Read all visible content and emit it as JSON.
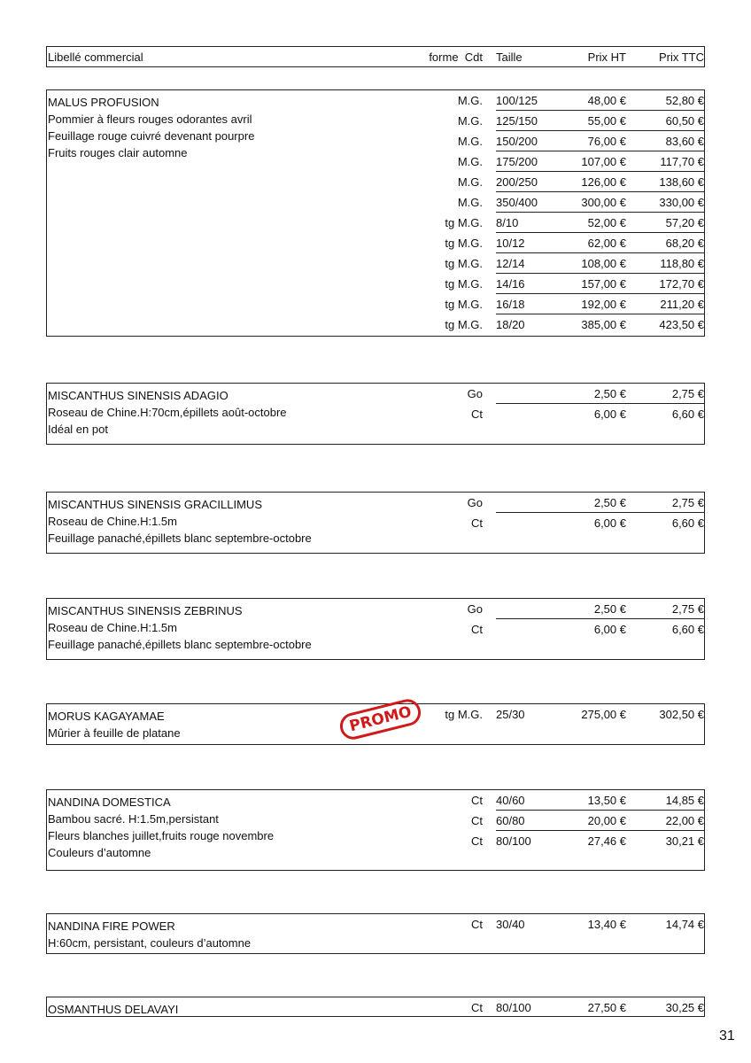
{
  "header": {
    "label": "Libellé commercial",
    "forme_cdt": "forme  Cdt",
    "taille": "Taille",
    "prix_ht": "Prix HT",
    "prix_ttc": "Prix TTC"
  },
  "products": [
    {
      "name": "MALUS PROFUSION",
      "description": [
        "Pommier à fleurs rouges odorantes avril",
        "Feuillage rouge cuivré devenant pourpre",
        "Fruits rouges clair automne"
      ],
      "rows": [
        [
          "M.G.",
          "100/125",
          "48,00 €",
          "52,80 €"
        ],
        [
          "M.G.",
          "125/150",
          "55,00 €",
          "60,50 €"
        ],
        [
          "M.G.",
          "150/200",
          "76,00 €",
          "83,60 €"
        ],
        [
          "M.G.",
          "175/200",
          "107,00 €",
          "117,70 €"
        ],
        [
          "M.G.",
          "200/250",
          "126,00 €",
          "138,60 €"
        ],
        [
          "M.G.",
          "350/400",
          "300,00 €",
          "330,00 €"
        ],
        [
          "tg M.G.",
          "8/10",
          "52,00 €",
          "57,20 €"
        ],
        [
          "tg M.G.",
          "10/12",
          "62,00 €",
          "68,20 €"
        ],
        [
          "tg M.G.",
          "12/14",
          "108,00 €",
          "118,80 €"
        ],
        [
          "tg M.G.",
          "14/16",
          "157,00 €",
          "172,70 €"
        ],
        [
          "tg M.G.",
          "16/18",
          "192,00 €",
          "211,20 €"
        ],
        [
          "tg M.G.",
          "18/20",
          "385,00 €",
          "423,50 €"
        ]
      ]
    },
    {
      "name": "MISCANTHUS SINENSIS ADAGIO",
      "description": [
        "Roseau de Chine.H:70cm,épillets août-octobre",
        "Idéal en pot"
      ],
      "rows": [
        [
          "Go",
          "",
          "2,50 €",
          "2,75 €"
        ],
        [
          "Ct",
          "",
          "6,00 €",
          "6,60 €"
        ]
      ]
    },
    {
      "name": "MISCANTHUS SINENSIS GRACILLIMUS",
      "description": [
        "Roseau de Chine.H:1.5m",
        "Feuillage panaché,épillets blanc septembre-octobre"
      ],
      "rows": [
        [
          "Go",
          "",
          "2,50 €",
          "2,75 €"
        ],
        [
          "Ct",
          "",
          "6,00 €",
          "6,60 €"
        ]
      ]
    },
    {
      "name": "MISCANTHUS SINENSIS ZEBRINUS",
      "description": [
        "Roseau de Chine.H:1.5m",
        "Feuillage panaché,épillets blanc septembre-octobre"
      ],
      "rows": [
        [
          "Go",
          "",
          "2,50 €",
          "2,75 €"
        ],
        [
          "Ct",
          "",
          "6,00 €",
          "6,60 €"
        ]
      ]
    },
    {
      "name": "MORUS KAGAYAMAE",
      "description": [
        "Mûrier à feuille de platane"
      ],
      "badge": "PROMO",
      "rows": [
        [
          "tg M.G.",
          "25/30",
          "275,00 €",
          "302,50 €"
        ]
      ]
    },
    {
      "name": "NANDINA DOMESTICA",
      "description": [
        "Bambou sacré. H:1.5m,persistant",
        "Fleurs blanches juillet,fruits rouge novembre",
        "Couleurs d’automne"
      ],
      "rows": [
        [
          "Ct",
          "40/60",
          "13,50 €",
          "14,85 €"
        ],
        [
          "Ct",
          "60/80",
          "20,00 €",
          "22,00 €"
        ],
        [
          "Ct",
          "80/100",
          "27,46 €",
          "30,21 €"
        ]
      ]
    },
    {
      "name": "NANDINA FIRE POWER",
      "description": [
        "H:60cm, persistant, couleurs d’automne"
      ],
      "rows": [
        [
          "Ct",
          "30/40",
          "13,40 €",
          "14,74 €"
        ]
      ]
    },
    {
      "name": "OSMANTHUS DELAVAYI",
      "description": [],
      "rows": [
        [
          "Ct",
          "80/100",
          "27,50 €",
          "30,25 €"
        ]
      ]
    }
  ],
  "page_number": "31",
  "colors": {
    "promo": "#d01a1a",
    "border": "#222222"
  }
}
